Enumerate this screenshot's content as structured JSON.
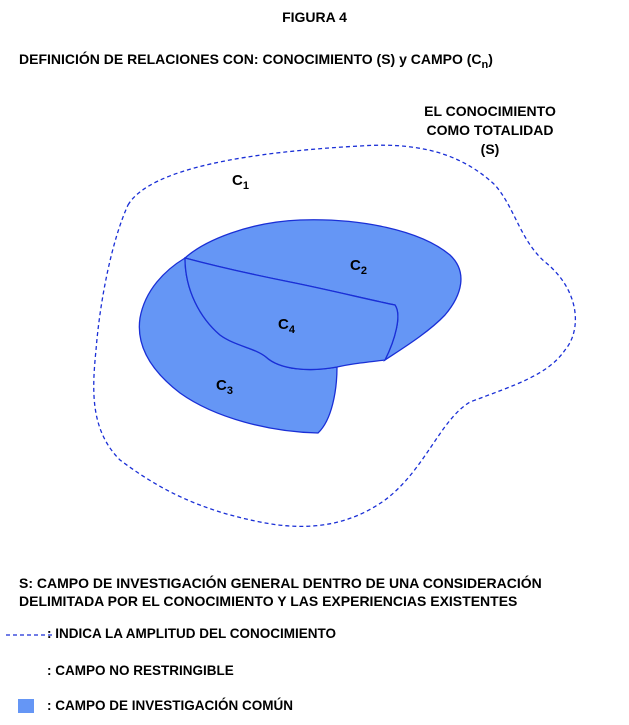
{
  "figure": {
    "title": "FIGURA 4",
    "subtitle_main": "DEFINICIÓN DE RELACIONES CON: CONOCIMIENTO (S) y CAMPO (C",
    "subtitle_sub": "n",
    "subtitle_close": ")"
  },
  "totality_label": {
    "line1": "EL CONOCIMIENTO",
    "line2": "COMO TOTALIDAD",
    "line3": "(S)"
  },
  "regions": {
    "c1": {
      "letter": "C",
      "index": "1"
    },
    "c2": {
      "letter": "C",
      "index": "2"
    },
    "c3": {
      "letter": "C",
      "index": "3"
    },
    "c4": {
      "letter": "C",
      "index": "4"
    }
  },
  "description": "S: CAMPO DE INVESTIGACIÓN GENERAL DENTRO DE UNA CONSIDERACIÓN DELIMITADA POR EL CONOCIMIENTO Y LAS EXPERIENCIAS EXISTENTES",
  "legend": {
    "dashed": ": INDICA LA AMPLITUD DEL CONOCIMIENTO",
    "open": ": CAMPO NO RESTRINGIBLE",
    "fill": ": CAMPO DE INVESTIGACIÓN COMÚN"
  },
  "colors": {
    "fill": "#6596f5",
    "stroke": "#1a2fd6",
    "dashed": "#1a2fd6"
  }
}
